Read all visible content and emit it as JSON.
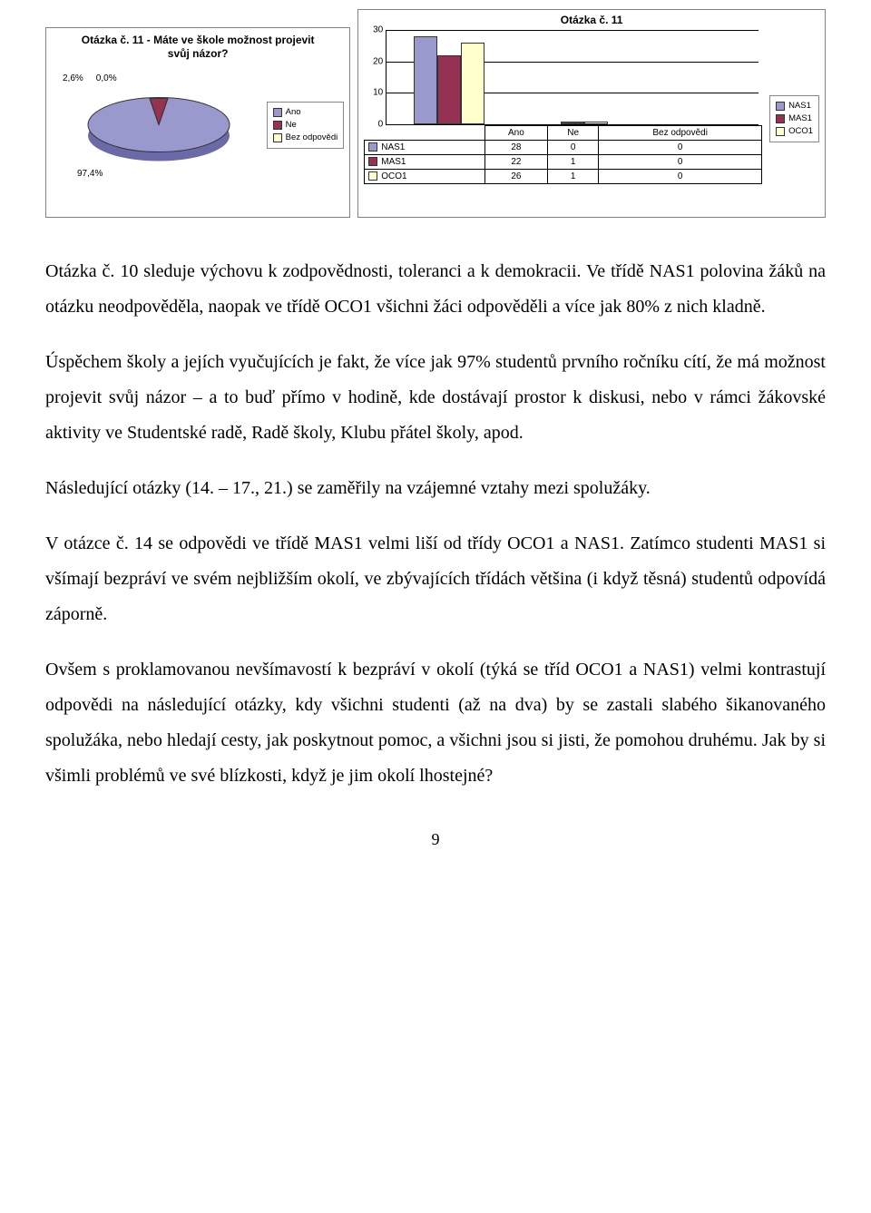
{
  "colors": {
    "nas1": "#9999ce",
    "mas1": "#953251",
    "oco1": "#ffffcc",
    "pie_ano": "#9999ce",
    "pie_ne": "#953251",
    "pie_bez": "#ffffcc",
    "border": "#808080"
  },
  "pie_panel": {
    "title_line1": "Otázka č. 11 - Máte ve škole možnost projevit",
    "title_line2": "svůj názor?",
    "pct_ne": "2,6%",
    "pct_bez": "0,0%",
    "pct_ano": "97,4%",
    "legend": {
      "ano": "Ano",
      "ne": "Ne",
      "bez": "Bez odpovědi"
    }
  },
  "bar_panel": {
    "title": "Otázka č. 11",
    "type": "bar",
    "ylim": [
      0,
      30
    ],
    "ytick_step": 10,
    "yticks": [
      "0",
      "10",
      "20",
      "30"
    ],
    "categories": [
      "Ano",
      "Ne",
      "Bez odpovědi"
    ],
    "series": [
      {
        "name": "NAS1",
        "values": [
          28,
          0,
          0
        ],
        "color": "#9999ce"
      },
      {
        "name": "MAS1",
        "values": [
          22,
          1,
          0
        ],
        "color": "#953251"
      },
      {
        "name": "OCO1",
        "values": [
          26,
          1,
          0
        ],
        "color": "#ffffcc"
      }
    ],
    "legend": {
      "nas1": "NAS1",
      "mas1": "MAS1",
      "oco1": "OCO1"
    }
  },
  "paragraphs": {
    "p1": "Otázka č. 10 sleduje výchovu k zodpovědnosti, toleranci a k demokracii. Ve třídě NAS1 polovina žáků na otázku neodpověděla, naopak ve třídě OCO1 všichni žáci odpověděli a více jak 80% z nich kladně.",
    "p2": "Úspěchem školy a jejích vyučujících je fakt, že více jak 97% studentů prvního ročníku cítí, že má možnost projevit svůj názor – a to buď přímo v hodině, kde dostávají prostor k diskusi, nebo v rámci žákovské aktivity ve Studentské radě, Radě školy, Klubu přátel školy, apod.",
    "p3": "Následující otázky (14. – 17., 21.) se zaměřily na vzájemné vztahy mezi spolužáky.",
    "p4": "V otázce č. 14 se odpovědi ve třídě MAS1 velmi liší od třídy OCO1 a NAS1. Zatímco studenti MAS1 si všímají bezpráví ve svém nejbližším okolí, ve zbývajících třídách většina (i když těsná) studentů odpovídá záporně.",
    "p5": "Ovšem s proklamovanou nevšímavostí k bezpráví v okolí (týká se tříd OCO1 a NAS1) velmi kontrastují odpovědi na následující otázky, kdy všichni studenti (až na dva) by se zastali slabého šikanovaného spolužáka, nebo hledají cesty, jak poskytnout pomoc, a všichni jsou si jisti, že pomohou druhému. Jak by si všimli problémů ve své blízkosti, když je jim okolí lhostejné?"
  },
  "page_number": "9"
}
